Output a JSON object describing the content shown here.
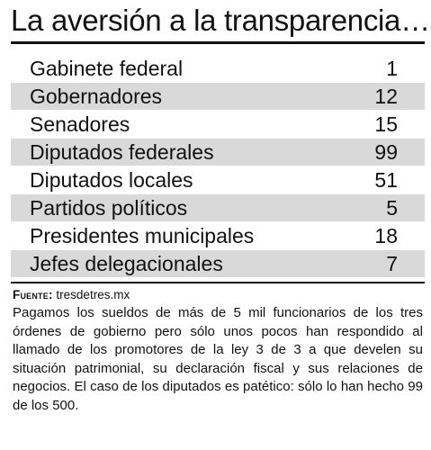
{
  "title": "La aversión a la transparencia…",
  "table": {
    "rows": [
      {
        "label": "Gabinete federal",
        "value": "1"
      },
      {
        "label": "Gobernadores",
        "value": "12"
      },
      {
        "label": "Senadores",
        "value": "15"
      },
      {
        "label": "Diputados federales",
        "value": "99"
      },
      {
        "label": "Diputados locales",
        "value": "51"
      },
      {
        "label": "Partidos políticos",
        "value": "5"
      },
      {
        "label": "Presidentes municipales",
        "value": "18"
      },
      {
        "label": "Jefes delegacionales",
        "value": "7"
      }
    ]
  },
  "source": {
    "key": "Fuente:",
    "value": "tresdetres.mx"
  },
  "note": "Pagamos los sueldos de más de 5 mil  funcionarios de los tres órdenes de gobierno pero sólo unos pocos han respondido al llamado de los promotores de la ley 3 de 3 a que develen su situación patrimonial, su declaración fiscal y sus relaciones de negocios. El caso de los diputados es patético: sólo lo han hecho 99 de los 500.",
  "colors": {
    "text": "#111111",
    "row_shade": "#d9d9d9",
    "background": "#ffffff"
  }
}
